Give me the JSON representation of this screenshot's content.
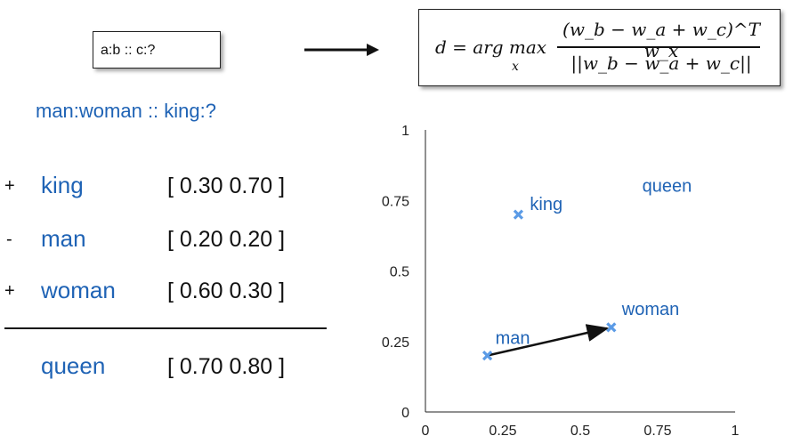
{
  "analogy_template": "a:b :: c:?",
  "formula": {
    "lhs": "d = arg max",
    "subscript": "x",
    "numerator": "(w_b − w_a + w_c)^T w_x",
    "denominator": "||w_b − w_a + w_c||"
  },
  "example": "man:woman :: king:?",
  "arithmetic": [
    {
      "op": "+",
      "word": "king",
      "vector": "[ 0.30 0.70 ]"
    },
    {
      "op": "-",
      "word": "man",
      "vector": "[ 0.20 0.20 ]"
    },
    {
      "op": "+",
      "word": "woman",
      "vector": "[ 0.60 0.30 ]"
    }
  ],
  "result": {
    "word": "queen",
    "vector": "[ 0.70 0.80 ]"
  },
  "colors": {
    "accent": "#1f63b5",
    "marker": "#5b9be6",
    "text": "#111111"
  },
  "chart_data": {
    "type": "scatter",
    "xlim": [
      0,
      1
    ],
    "ylim": [
      0,
      1
    ],
    "x_ticks": [
      "0",
      "0.25",
      "0.5",
      "0.75",
      "1"
    ],
    "y_ticks": [
      "0",
      "0.25",
      "0.5",
      "0.75",
      "1"
    ],
    "points": [
      {
        "label": "king",
        "x": 0.3,
        "y": 0.7,
        "marker": true
      },
      {
        "label": "man",
        "x": 0.2,
        "y": 0.2,
        "marker": true
      },
      {
        "label": "woman",
        "x": 0.6,
        "y": 0.3,
        "marker": true
      },
      {
        "label": "queen",
        "x": 0.7,
        "y": 0.8,
        "marker": false
      }
    ],
    "arrows": [
      {
        "from": "man",
        "to": "woman"
      }
    ],
    "grid": false
  }
}
